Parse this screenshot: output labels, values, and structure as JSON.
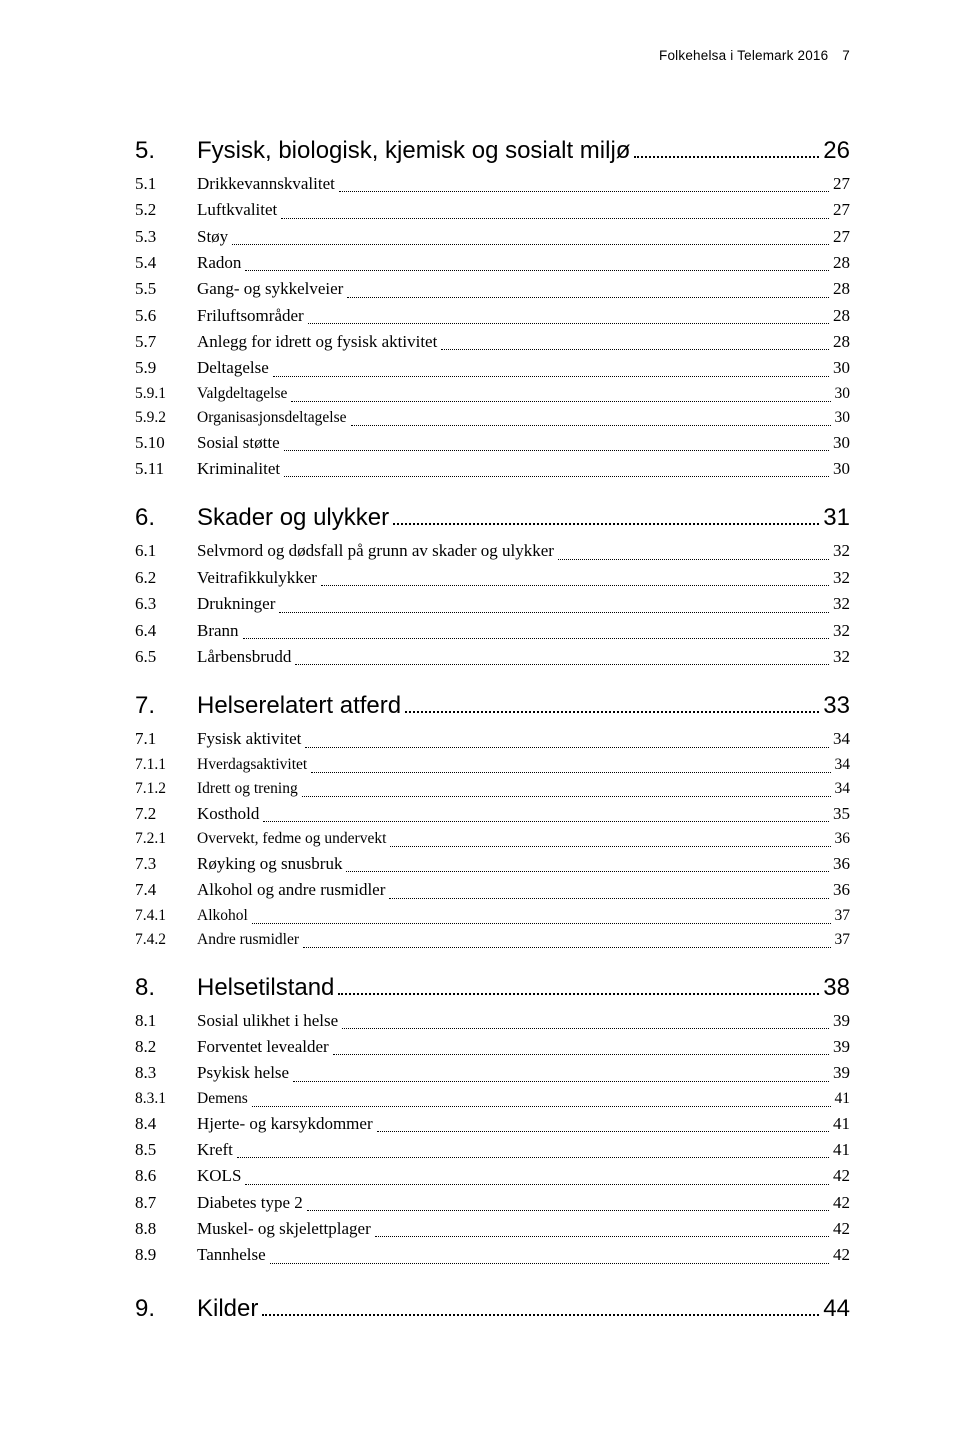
{
  "running_head": {
    "title": "Folkehelsa i Telemark 2016",
    "page": "7"
  },
  "toc": [
    {
      "num": "5.",
      "title": "Fysisk, biologisk, kjemisk og sosialt miljø",
      "page": "26",
      "level": 1,
      "children": [
        {
          "num": "5.1",
          "title": "Drikkevannskvalitet",
          "page": "27",
          "level": 2
        },
        {
          "num": "5.2",
          "title": "Luftkvalitet",
          "page": "27",
          "level": 2
        },
        {
          "num": "5.3",
          "title": "Støy",
          "page": "27",
          "level": 2
        },
        {
          "num": "5.4",
          "title": "Radon",
          "page": "28",
          "level": 2
        },
        {
          "num": "5.5",
          "title": "Gang- og sykkelveier",
          "page": "28",
          "level": 2
        },
        {
          "num": "5.6",
          "title": "Friluftsområder",
          "page": "28",
          "level": 2
        },
        {
          "num": "5.7",
          "title": "Anlegg for idrett og fysisk aktivitet",
          "page": "28",
          "level": 2
        },
        {
          "num": "5.9",
          "title": "Deltagelse",
          "page": "30",
          "level": 2
        },
        {
          "num": "5.9.1",
          "title": "Valgdeltagelse",
          "page": "30",
          "level": 3
        },
        {
          "num": "5.9.2",
          "title": "Organisasjonsdeltagelse",
          "page": "30",
          "level": 3
        },
        {
          "num": "5.10",
          "title": "Sosial støtte",
          "page": "30",
          "level": 2
        },
        {
          "num": "5.11",
          "title": "Kriminalitet",
          "page": "30",
          "level": 2
        }
      ]
    },
    {
      "num": "6.",
      "title": "Skader og ulykker",
      "page": "31",
      "level": 1,
      "children": [
        {
          "num": "6.1",
          "title": "Selvmord og dødsfall på grunn av skader og ulykker",
          "page": "32",
          "level": 2
        },
        {
          "num": "6.2",
          "title": "Veitrafikkulykker",
          "page": "32",
          "level": 2
        },
        {
          "num": "6.3",
          "title": "Drukninger",
          "page": "32",
          "level": 2
        },
        {
          "num": "6.4",
          "title": "Brann",
          "page": "32",
          "level": 2
        },
        {
          "num": "6.5",
          "title": "Lårbensbrudd",
          "page": "32",
          "level": 2
        }
      ]
    },
    {
      "num": "7.",
      "title": "Helserelatert atferd",
      "page": "33",
      "level": 1,
      "children": [
        {
          "num": "7.1",
          "title": "Fysisk aktivitet",
          "page": "34",
          "level": 2
        },
        {
          "num": "7.1.1",
          "title": "Hverdagsaktivitet",
          "page": "34",
          "level": 3
        },
        {
          "num": "7.1.2",
          "title": "Idrett og trening",
          "page": "34",
          "level": 3
        },
        {
          "num": "7.2",
          "title": "Kosthold",
          "page": "35",
          "level": 2
        },
        {
          "num": "7.2.1",
          "title": "Overvekt, fedme og undervekt",
          "page": "36",
          "level": 3
        },
        {
          "num": "7.3",
          "title": "Røyking og snusbruk",
          "page": "36",
          "level": 2
        },
        {
          "num": "7.4",
          "title": "Alkohol og andre rusmidler",
          "page": "36",
          "level": 2
        },
        {
          "num": "7.4.1",
          "title": "Alkohol",
          "page": "37",
          "level": 3
        },
        {
          "num": "7.4.2",
          "title": "Andre rusmidler",
          "page": "37",
          "level": 3
        }
      ]
    },
    {
      "num": "8.",
      "title": "Helsetilstand",
      "page": "38",
      "level": 1,
      "children": [
        {
          "num": "8.1",
          "title": "Sosial ulikhet i helse",
          "page": "39",
          "level": 2
        },
        {
          "num": "8.2",
          "title": "Forventet levealder",
          "page": "39",
          "level": 2
        },
        {
          "num": "8.3",
          "title": "Psykisk helse",
          "page": "39",
          "level": 2
        },
        {
          "num": "8.3.1",
          "title": "Demens",
          "page": "41",
          "level": 3
        },
        {
          "num": "8.4",
          "title": "Hjerte- og karsykdommer",
          "page": "41",
          "level": 2
        },
        {
          "num": "8.5",
          "title": "Kreft",
          "page": "41",
          "level": 2
        },
        {
          "num": "8.6",
          "title": "KOLS",
          "page": "42",
          "level": 2
        },
        {
          "num": "8.7",
          "title": "Diabetes type 2",
          "page": "42",
          "level": 2
        },
        {
          "num": "8.8",
          "title": "Muskel- og skjelettplager",
          "page": "42",
          "level": 2
        },
        {
          "num": "8.9",
          "title": "Tannhelse",
          "page": "42",
          "level": 2
        }
      ]
    },
    {
      "num": "9.",
      "title": "Kilder",
      "page": "44",
      "level": 1,
      "children": []
    }
  ]
}
